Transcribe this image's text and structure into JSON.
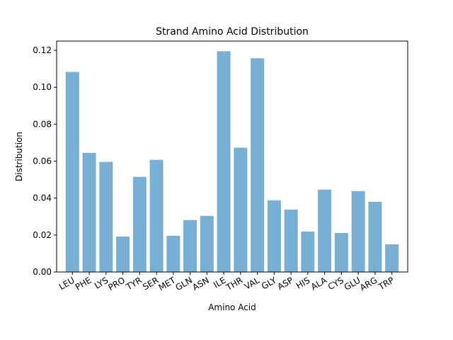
{
  "chart_data": {
    "type": "bar",
    "title": "Strand Amino Acid Distribution",
    "xlabel": "Amino Acid",
    "ylabel": "Distribution",
    "ylim": [
      0,
      0.125
    ],
    "yticks": [
      0.0,
      0.02,
      0.04,
      0.06,
      0.08,
      0.1,
      0.12
    ],
    "ytick_labels": [
      "0.00",
      "0.02",
      "0.04",
      "0.06",
      "0.08",
      "0.10",
      "0.12"
    ],
    "categories": [
      "LEU",
      "PHE",
      "LYS",
      "PRO",
      "TYR",
      "SER",
      "MET",
      "GLN",
      "ASN",
      "ILE",
      "THR",
      "VAL",
      "GLY",
      "ASP",
      "HIS",
      "ALA",
      "CYS",
      "GLU",
      "ARG",
      "TRP"
    ],
    "values": [
      0.1083,
      0.0645,
      0.0596,
      0.0192,
      0.0515,
      0.0607,
      0.0196,
      0.0281,
      0.0304,
      0.1195,
      0.0673,
      0.1157,
      0.0388,
      0.0338,
      0.0219,
      0.0446,
      0.0211,
      0.0438,
      0.038,
      0.015
    ],
    "bar_color": "#77b0d4",
    "grid": false,
    "legend": "none"
  }
}
